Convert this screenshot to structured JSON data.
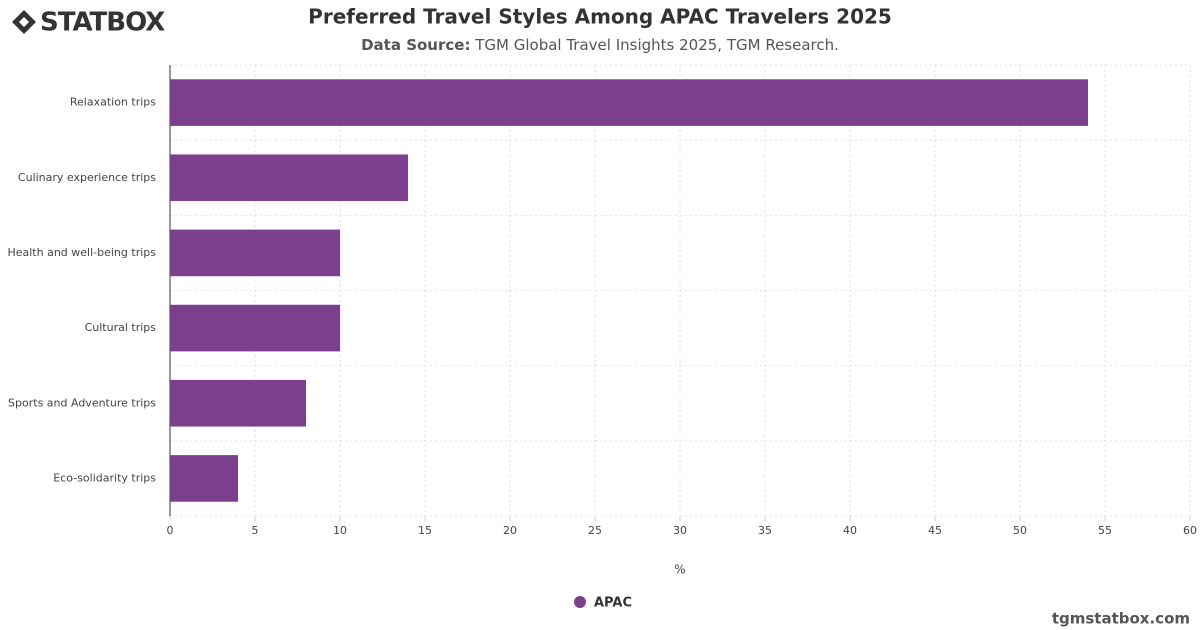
{
  "brand": {
    "logo": "STATBOX",
    "website": "tgmstatbox.com"
  },
  "chart_data": {
    "type": "hbar",
    "title": "Preferred Travel Styles Among APAC Travelers 2025",
    "subtitle_label": "Data Source:",
    "subtitle": "TGM Global Travel Insights 2025, TGM Research.",
    "categories": [
      "Relaxation trips",
      "Culinary experience trips",
      "Health and well-being trips",
      "Cultural trips",
      "Sports and Adventure trips",
      "Eco-solidarity trips"
    ],
    "series": [
      {
        "name": "APAC",
        "color": "#7b3f8e",
        "values": [
          54,
          14,
          10,
          10,
          8,
          4
        ]
      }
    ],
    "xlabel": "%",
    "xlim": [
      0,
      60
    ],
    "xticks": [
      0,
      5,
      10,
      15,
      20,
      25,
      30,
      35,
      40,
      45,
      50,
      55,
      60
    ],
    "grid": true
  }
}
